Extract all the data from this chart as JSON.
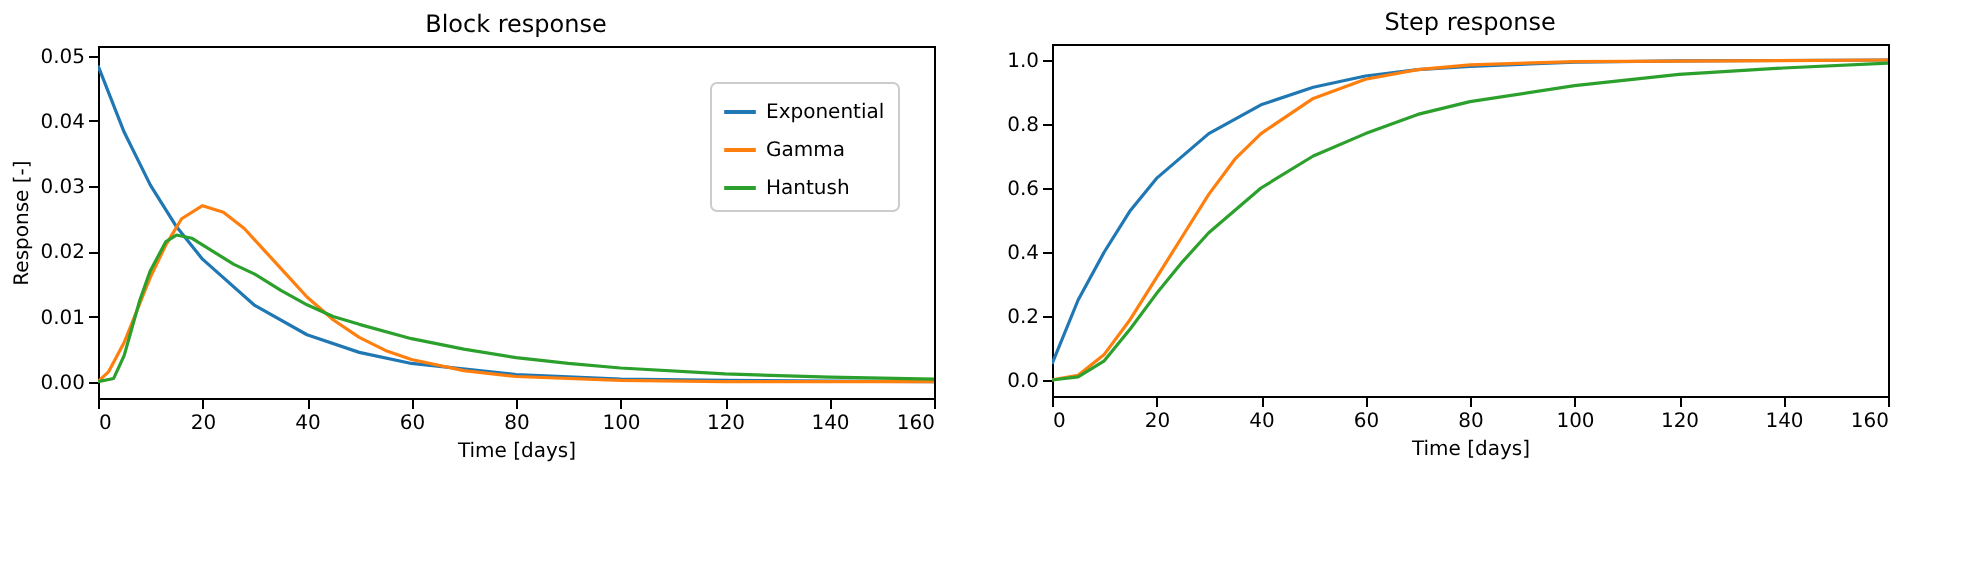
{
  "chart_data": [
    {
      "type": "line",
      "title": "Block response",
      "xlabel": "Time [days]",
      "ylabel": "Response [-]",
      "xlim": [
        0,
        160
      ],
      "xticks": [
        0,
        20,
        40,
        60,
        80,
        100,
        120,
        140,
        160
      ],
      "ylim": [
        -0.0025,
        0.0515
      ],
      "yticks": [
        {
          "value": 0,
          "label": "0.00"
        },
        {
          "value": 0.01,
          "label": "0.01"
        },
        {
          "value": 0.02,
          "label": "0.02"
        },
        {
          "value": 0.03,
          "label": "0.03"
        },
        {
          "value": 0.04,
          "label": "0.04"
        },
        {
          "value": 0.05,
          "label": "0.05"
        }
      ],
      "legend": "top right",
      "grid": false,
      "series": [
        {
          "name": "Exponential",
          "color": "#1f77b4",
          "x": [
            0,
            5,
            10,
            15,
            20,
            30,
            40,
            50,
            60,
            80,
            100,
            120,
            140,
            160
          ],
          "values": [
            0.0485,
            0.0383,
            0.0302,
            0.0238,
            0.0188,
            0.0117,
            0.0072,
            0.0045,
            0.0028,
            0.0011,
            0.0004,
            0.0002,
            0.0001,
            0.0
          ]
        },
        {
          "name": "Gamma",
          "color": "#ff7f0e",
          "x": [
            0,
            2,
            5,
            8,
            10,
            13,
            16,
            20,
            24,
            28,
            32,
            36,
            40,
            45,
            50,
            55,
            60,
            70,
            80,
            100,
            120,
            160
          ],
          "values": [
            0.0,
            0.0015,
            0.006,
            0.012,
            0.016,
            0.021,
            0.025,
            0.027,
            0.026,
            0.0235,
            0.02,
            0.0165,
            0.013,
            0.0095,
            0.0068,
            0.0048,
            0.0034,
            0.0017,
            0.0008,
            0.0002,
            0.0,
            0.0
          ]
        },
        {
          "name": "Hantush",
          "color": "#2ca02c",
          "x": [
            0,
            3,
            5,
            8,
            10,
            13,
            15,
            18,
            22,
            26,
            30,
            35,
            40,
            45,
            50,
            60,
            70,
            80,
            90,
            100,
            120,
            140,
            160
          ],
          "values": [
            0.0,
            0.0005,
            0.004,
            0.0125,
            0.017,
            0.0215,
            0.0225,
            0.022,
            0.02,
            0.018,
            0.0165,
            0.014,
            0.0118,
            0.01,
            0.0088,
            0.0066,
            0.005,
            0.0037,
            0.0028,
            0.0021,
            0.0012,
            0.0007,
            0.0004
          ]
        }
      ]
    },
    {
      "type": "line",
      "title": "Step response",
      "xlabel": "Time [days]",
      "xlim": [
        0,
        160
      ],
      "xticks": [
        0,
        20,
        40,
        60,
        80,
        100,
        120,
        140,
        160
      ],
      "ylim": [
        -0.05,
        1.05
      ],
      "yticks": [
        {
          "value": 0,
          "label": "0.0"
        },
        {
          "value": 0.2,
          "label": "0.2"
        },
        {
          "value": 0.4,
          "label": "0.4"
        },
        {
          "value": 0.6,
          "label": "0.6"
        },
        {
          "value": 0.8,
          "label": "0.8"
        },
        {
          "value": 1,
          "label": "1.0"
        }
      ],
      "grid": false,
      "series": [
        {
          "color": "#1f77b4",
          "x": [
            0,
            5,
            10,
            15,
            20,
            30,
            40,
            50,
            60,
            70,
            80,
            100,
            120,
            160
          ],
          "values": [
            0.05,
            0.25,
            0.4,
            0.53,
            0.63,
            0.77,
            0.86,
            0.915,
            0.95,
            0.97,
            0.98,
            0.993,
            0.997,
            1.0
          ]
        },
        {
          "color": "#ff7f0e",
          "x": [
            0,
            5,
            10,
            15,
            20,
            25,
            30,
            35,
            40,
            50,
            60,
            70,
            80,
            100,
            160
          ],
          "values": [
            0.0,
            0.015,
            0.08,
            0.19,
            0.32,
            0.45,
            0.58,
            0.69,
            0.77,
            0.88,
            0.94,
            0.97,
            0.985,
            0.995,
            1.0
          ]
        },
        {
          "color": "#2ca02c",
          "x": [
            0,
            5,
            10,
            15,
            20,
            25,
            30,
            40,
            50,
            60,
            70,
            80,
            100,
            120,
            140,
            160
          ],
          "values": [
            0.0,
            0.01,
            0.06,
            0.16,
            0.27,
            0.37,
            0.46,
            0.6,
            0.7,
            0.77,
            0.83,
            0.87,
            0.92,
            0.955,
            0.975,
            0.99
          ]
        }
      ]
    }
  ]
}
